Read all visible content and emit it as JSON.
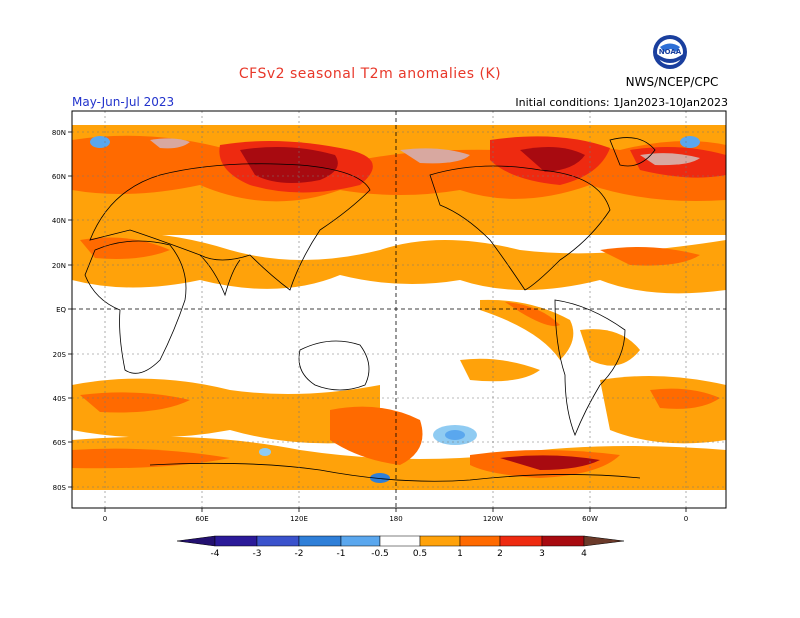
{
  "header": {
    "title": "CFSv2 seasonal T2m anomalies (K)",
    "period": "May-Jun-Jul 2023",
    "initial_conditions": "Initial conditions: 1Jan2023-10Jan2023",
    "agency": "NWS/NCEP/CPC",
    "logo_text": "NOAA",
    "logo_icon": "noaa-logo-icon"
  },
  "map": {
    "lat_labels": [
      "80N",
      "60N",
      "40N",
      "20N",
      "EQ",
      "20S",
      "40S",
      "60S",
      "80S"
    ],
    "lon_labels": [
      "0",
      "60E",
      "120E",
      "180",
      "120W",
      "60W",
      "0"
    ]
  },
  "colorbar": {
    "labels": [
      "-4",
      "-3",
      "-2",
      "-1",
      "-0.5",
      "0.5",
      "1",
      "2",
      "3",
      "4"
    ],
    "colors": [
      "#2b1a99",
      "#3a52cc",
      "#2f7fd8",
      "#5aa7ee",
      "#8fcbf2",
      "#ffffff",
      "#ffa20a",
      "#ff6a00",
      "#ee2a10",
      "#a80a10",
      "#d8a8a0"
    ],
    "end_low": "#231070",
    "end_high": "#6b3a2a"
  }
}
